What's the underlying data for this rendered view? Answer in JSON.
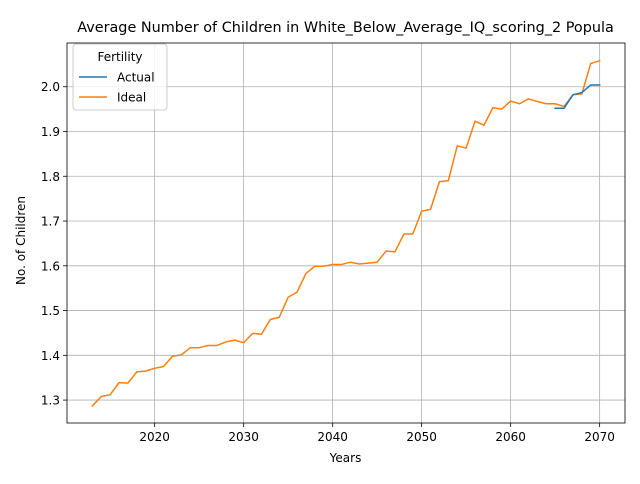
{
  "chart_data": {
    "type": "line",
    "title": "Average Number of Children in White_Below_Average_IQ_scoring_2 Popula",
    "xlabel": "Years",
    "ylabel": "No. of Children",
    "xlim": [
      2010.15,
      2072.85
    ],
    "ylim": [
      1.2488,
      2.0977
    ],
    "x_ticks": [
      2020,
      2030,
      2040,
      2050,
      2060,
      2070
    ],
    "y_ticks": [
      1.3,
      1.4,
      1.5,
      1.6,
      1.7,
      1.8,
      1.9,
      2.0
    ],
    "grid": true,
    "legend": {
      "title": "Fertility",
      "placement": "upper-left"
    },
    "series": [
      {
        "name": "Actual",
        "color": "#1f77b4",
        "x": [
          2065,
          2066,
          2067,
          2068,
          2069,
          2070
        ],
        "y": [
          1.952,
          1.952,
          1.982,
          1.987,
          2.004,
          2.004
        ]
      },
      {
        "name": "Ideal",
        "color": "#ff7f0e",
        "x": [
          2013,
          2014,
          2015,
          2016,
          2017,
          2018,
          2019,
          2020,
          2021,
          2022,
          2023,
          2024,
          2025,
          2026,
          2027,
          2028,
          2029,
          2030,
          2031,
          2032,
          2033,
          2034,
          2035,
          2036,
          2037,
          2038,
          2039,
          2040,
          2041,
          2042,
          2043,
          2044,
          2045,
          2046,
          2047,
          2048,
          2049,
          2050,
          2051,
          2052,
          2053,
          2054,
          2055,
          2056,
          2057,
          2058,
          2059,
          2060,
          2061,
          2062,
          2063,
          2064,
          2065,
          2066,
          2067,
          2068,
          2069,
          2070
        ],
        "y": [
          1.287,
          1.308,
          1.312,
          1.339,
          1.338,
          1.363,
          1.365,
          1.371,
          1.375,
          1.398,
          1.401,
          1.417,
          1.417,
          1.422,
          1.422,
          1.43,
          1.434,
          1.428,
          1.449,
          1.447,
          1.48,
          1.485,
          1.53,
          1.541,
          1.583,
          1.599,
          1.599,
          1.603,
          1.603,
          1.608,
          1.604,
          1.606,
          1.608,
          1.633,
          1.631,
          1.671,
          1.671,
          1.722,
          1.726,
          1.788,
          1.79,
          1.868,
          1.863,
          1.923,
          1.914,
          1.953,
          1.95,
          1.968,
          1.962,
          1.973,
          1.967,
          1.962,
          1.962,
          1.956,
          1.982,
          1.984,
          2.052,
          2.058
        ]
      }
    ]
  }
}
